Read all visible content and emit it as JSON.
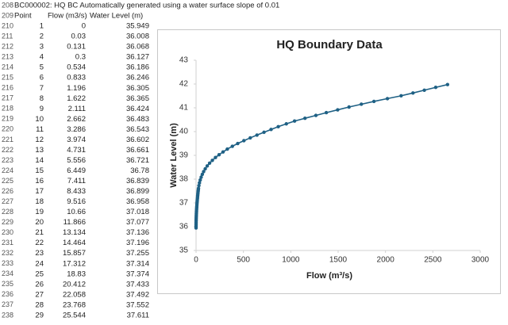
{
  "sheet": {
    "row_numbers": [
      208,
      209,
      210,
      211,
      212,
      213,
      214,
      215,
      216,
      217,
      218,
      219,
      220,
      221,
      222,
      223,
      224,
      225,
      226,
      227,
      228,
      229,
      230,
      231,
      232,
      233,
      234,
      235,
      236,
      237,
      238
    ],
    "note": "BC000002: HQ BC Automatically generated using a water surface slope of 0.01",
    "headers": [
      "Point",
      "Flow (m3/s)",
      "Water Level (m)"
    ],
    "rows": [
      [
        1,
        0,
        35.949
      ],
      [
        2,
        0.03,
        36.008
      ],
      [
        3,
        0.131,
        36.068
      ],
      [
        4,
        0.3,
        36.127
      ],
      [
        5,
        0.534,
        36.186
      ],
      [
        6,
        0.833,
        36.246
      ],
      [
        7,
        1.196,
        36.305
      ],
      [
        8,
        1.622,
        36.365
      ],
      [
        9,
        2.111,
        36.424
      ],
      [
        10,
        2.662,
        36.483
      ],
      [
        11,
        3.286,
        36.543
      ],
      [
        12,
        3.974,
        36.602
      ],
      [
        13,
        4.731,
        36.661
      ],
      [
        14,
        5.556,
        36.721
      ],
      [
        15,
        6.449,
        36.78
      ],
      [
        16,
        7.411,
        36.839
      ],
      [
        17,
        8.433,
        36.899
      ],
      [
        18,
        9.516,
        36.958
      ],
      [
        19,
        10.66,
        37.018
      ],
      [
        20,
        11.866,
        37.077
      ],
      [
        21,
        13.134,
        37.136
      ],
      [
        22,
        14.464,
        37.196
      ],
      [
        23,
        15.857,
        37.255
      ],
      [
        24,
        17.312,
        37.314
      ],
      [
        25,
        18.83,
        37.374
      ],
      [
        26,
        20.412,
        37.433
      ],
      [
        27,
        22.058,
        37.492
      ],
      [
        28,
        23.768,
        37.552
      ],
      [
        29,
        25.544,
        37.611
      ]
    ]
  },
  "chart_data": {
    "type": "line",
    "title": "HQ Boundary Data",
    "x_label": "Flow (m³/s)",
    "y_label": "Water Level (m)",
    "color": "#1f6185",
    "x": [
      0,
      0.03,
      0.131,
      0.3,
      0.534,
      0.833,
      1.196,
      1.622,
      2.111,
      2.662,
      3.286,
      3.974,
      4.731,
      5.556,
      6.449,
      7.411,
      8.433,
      9.516,
      10.66,
      11.866,
      13.134,
      14.464,
      15.857,
      17.312,
      18.83,
      20.412,
      22.058,
      23.768,
      25.544,
      30,
      36,
      44,
      54,
      66,
      80,
      97,
      118,
      143,
      172,
      205,
      243,
      285,
      330,
      383,
      440,
      505,
      572,
      643,
      717,
      792,
      868,
      953,
      1040,
      1150,
      1265,
      1375,
      1495,
      1615,
      1745,
      1878,
      2020,
      2165,
      2290,
      2410,
      2530,
      2655
    ],
    "values": [
      35.949,
      36.008,
      36.068,
      36.127,
      36.186,
      36.246,
      36.305,
      36.365,
      36.424,
      36.483,
      36.543,
      36.602,
      36.661,
      36.721,
      36.78,
      36.839,
      36.899,
      36.958,
      37.018,
      37.077,
      37.136,
      37.196,
      37.255,
      37.314,
      37.374,
      37.433,
      37.492,
      37.552,
      37.611,
      37.729,
      37.847,
      37.965,
      38.083,
      38.201,
      38.319,
      38.437,
      38.555,
      38.673,
      38.791,
      38.909,
      39.027,
      39.145,
      39.263,
      39.381,
      39.499,
      39.617,
      39.735,
      39.853,
      39.971,
      40.089,
      40.207,
      40.325,
      40.443,
      40.561,
      40.679,
      40.797,
      40.915,
      41.033,
      41.151,
      41.269,
      41.387,
      41.505,
      41.623,
      41.741,
      41.859,
      41.977
    ],
    "xlim": [
      0,
      3000
    ],
    "xticks": [
      0,
      500,
      1000,
      1500,
      2000,
      2500,
      3000
    ],
    "ylim": [
      35,
      43
    ],
    "yticks": [
      35,
      36,
      37,
      38,
      39,
      40,
      41,
      42,
      43
    ]
  }
}
